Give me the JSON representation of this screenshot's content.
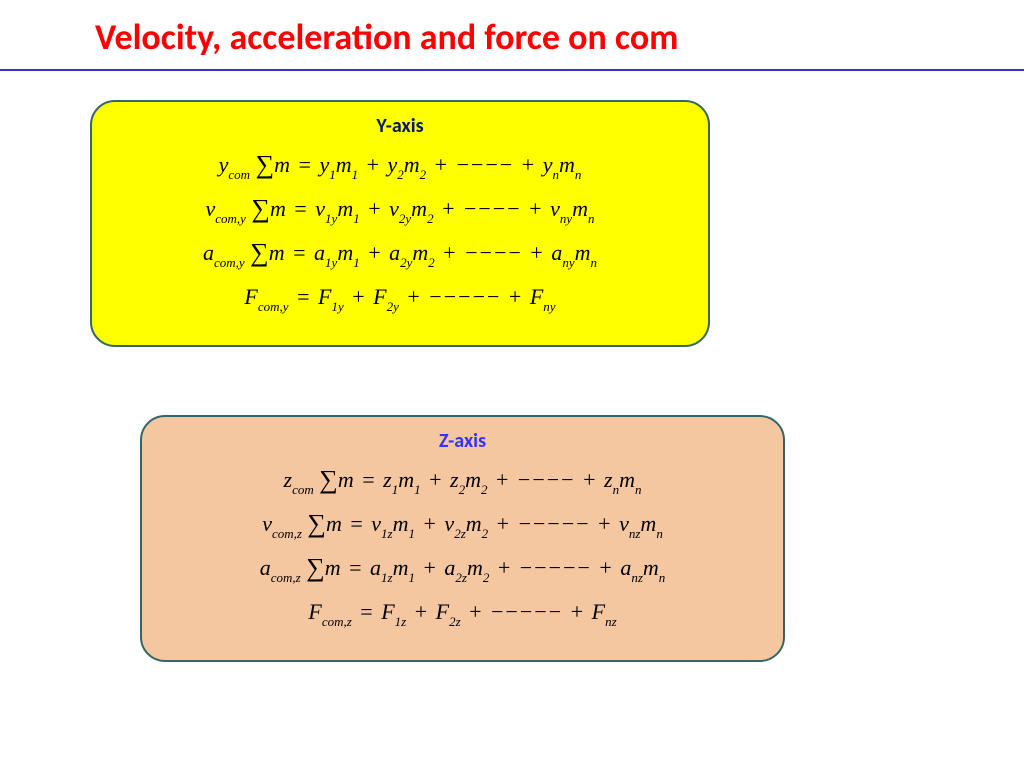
{
  "title": {
    "text": "Velocity, acceleration and force on com",
    "color": "#ff0000"
  },
  "hr": {
    "color": "#3333cc"
  },
  "panelY": {
    "label": "Y-axis",
    "label_color": "#001a66",
    "bg": "#ffff00",
    "border": "#336666",
    "eq1": {
      "lhs_var": "y",
      "lhs_sub": "com",
      "v": "y",
      "s1": "1",
      "s2": "2",
      "sn": "n",
      "dashes": 4
    },
    "eq2": {
      "lhs_var": "v",
      "lhs_sub": "com,y",
      "v": "v",
      "s1": "1y",
      "s2": "2y",
      "sn": "ny",
      "dashes": 4
    },
    "eq3": {
      "lhs_var": "a",
      "lhs_sub": "com,y",
      "v": "a",
      "s1": "1y",
      "s2": "2y",
      "sn": "ny",
      "dashes": 4
    },
    "eq4": {
      "lhs_var": "F",
      "lhs_sub": "com,y",
      "v": "F",
      "s1": "1y",
      "s2": "2y",
      "sn": "ny",
      "dashes": 5
    }
  },
  "panelZ": {
    "label": "Z-axis",
    "label_color": "#3333ff",
    "bg": "#f4c7a1",
    "border": "#336666",
    "eq1": {
      "lhs_var": "z",
      "lhs_sub": "com",
      "v": "z",
      "s1": "1",
      "s2": "2",
      "sn": "n",
      "dashes": 4
    },
    "eq2": {
      "lhs_var": "v",
      "lhs_sub": "com,z",
      "v": "v",
      "s1": "1z",
      "s2": "2z",
      "sn": "nz",
      "dashes": 5
    },
    "eq3": {
      "lhs_var": "a",
      "lhs_sub": "com,z",
      "v": "a",
      "s1": "1z",
      "s2": "2z",
      "sn": "nz",
      "dashes": 5
    },
    "eq4": {
      "lhs_var": "F",
      "lhs_sub": "com,z",
      "v": "F",
      "s1": "1z",
      "s2": "2z",
      "sn": "nz",
      "dashes": 5
    }
  }
}
